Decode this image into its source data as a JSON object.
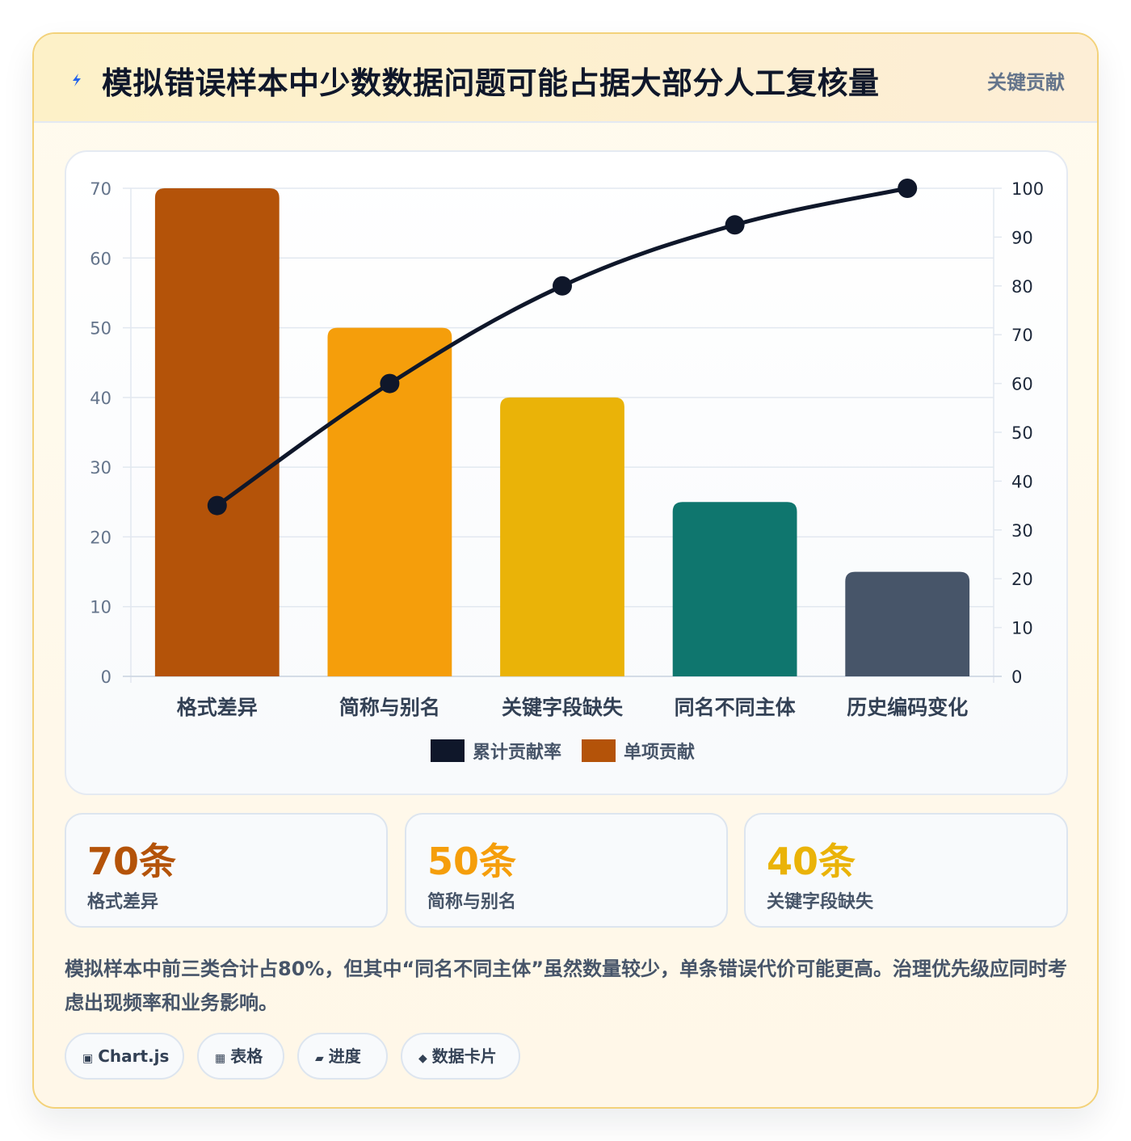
{
  "header": {
    "title": "模拟错误样本中少数数据问题可能占据大部分人工复核量",
    "badge": "关键贡献",
    "icon": "lightning-icon",
    "icon_color": "#2563eb"
  },
  "chart_data": {
    "type": "bar",
    "categories": [
      "格式差异",
      "简称与别名",
      "关键字段缺失",
      "同名不同主体",
      "历史编码变化"
    ],
    "series": [
      {
        "name": "单项贡献",
        "type": "bar",
        "axis": "left",
        "values": [
          70,
          50,
          40,
          25,
          15
        ],
        "colors": [
          "#b45309",
          "#f59e0b",
          "#eab308",
          "#0f766e",
          "#475569"
        ]
      },
      {
        "name": "累计贡献率",
        "type": "line",
        "axis": "right",
        "values": [
          35,
          60,
          80,
          92.5,
          100
        ],
        "color": "#0f172a"
      }
    ],
    "ylim": [
      0,
      70
    ],
    "y_ticks": [
      0,
      10,
      20,
      30,
      40,
      50,
      60,
      70
    ],
    "y2lim": [
      0,
      100
    ],
    "y2_ticks": [
      0,
      10,
      20,
      30,
      40,
      50,
      60,
      70,
      80,
      90,
      100
    ],
    "legend": {
      "placement": "bottom",
      "items": [
        {
          "label": "累计贡献率",
          "color": "#0f172a"
        },
        {
          "label": "单项贡献",
          "color": "#b45309"
        }
      ]
    },
    "grid": true
  },
  "stats": [
    {
      "value": "70条",
      "label": "格式差异",
      "color": "#b45309"
    },
    {
      "value": "50条",
      "label": "简称与别名",
      "color": "#f59e0b"
    },
    {
      "value": "40条",
      "label": "关键字段缺失",
      "color": "#eab308"
    }
  ],
  "note": "模拟样本中前三类合计占80%，但其中“同名不同主体”虽然数量较少，单条错误代价可能更高。治理优先级应同时考虑出现频率和业务影响。",
  "tags": [
    {
      "icon": "▣",
      "icon_name": "chart-icon",
      "label": "Chart.js"
    },
    {
      "icon": "▦",
      "icon_name": "table-icon",
      "label": "表格"
    },
    {
      "icon": "▰",
      "icon_name": "progress-icon",
      "label": "进度"
    },
    {
      "icon": "◆",
      "icon_name": "card-icon",
      "label": "数据卡片"
    }
  ]
}
